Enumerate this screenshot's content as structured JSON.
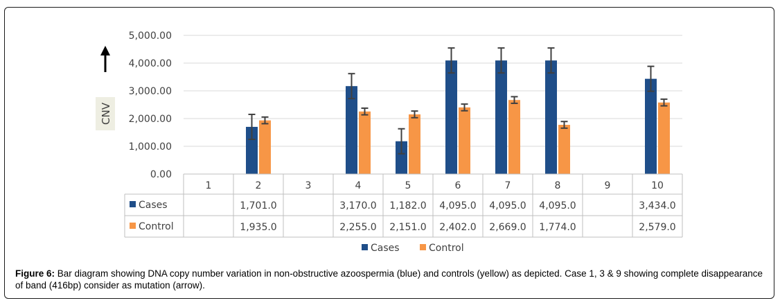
{
  "chart_data": {
    "type": "bar",
    "categories": [
      "1",
      "2",
      "3",
      "4",
      "5",
      "6",
      "7",
      "8",
      "9",
      "10"
    ],
    "series": [
      {
        "name": "Cases",
        "color": "#1f4e89",
        "values": [
          null,
          1701.0,
          null,
          3170.0,
          1182.0,
          4095.0,
          4095.0,
          4095.0,
          null,
          3434.0
        ],
        "labels": [
          "",
          "1,701.0",
          "",
          "3,170.0",
          "1,182.0",
          "4,095.0",
          "4,095.0",
          "4,095.0",
          "",
          "3,434.0"
        ],
        "errors": [
          null,
          450,
          null,
          450,
          450,
          450,
          450,
          450,
          null,
          450
        ]
      },
      {
        "name": "Control",
        "color": "#f79646",
        "values": [
          null,
          1935.0,
          null,
          2255.0,
          2151.0,
          2402.0,
          2669.0,
          1774.0,
          null,
          2579.0
        ],
        "labels": [
          "",
          "1,935.0",
          "",
          "2,255.0",
          "2,151.0",
          "2,402.0",
          "2,669.0",
          "1,774.0",
          "",
          "2,579.0"
        ],
        "errors": [
          null,
          120,
          null,
          120,
          120,
          120,
          120,
          120,
          null,
          120
        ]
      }
    ],
    "ylabel": "CNV",
    "ylim": [
      0,
      5000
    ],
    "yticks": [
      0,
      1000,
      2000,
      3000,
      4000,
      5000
    ],
    "ytick_labels": [
      "0.00",
      "1,000.00",
      "2,000.00",
      "3,000.00",
      "4,000.00",
      "5,000.00"
    ],
    "grid": true,
    "legend_position": "bottom",
    "data_table": true
  },
  "caption": {
    "label": "Figure 6:",
    "text": " Bar diagram showing DNA copy number variation in non-obstructive azoospermia (blue) and controls (yellow) as depicted. Case 1, 3 & 9 showing complete disappearance of band (416bp) consider as mutation (arrow)."
  }
}
